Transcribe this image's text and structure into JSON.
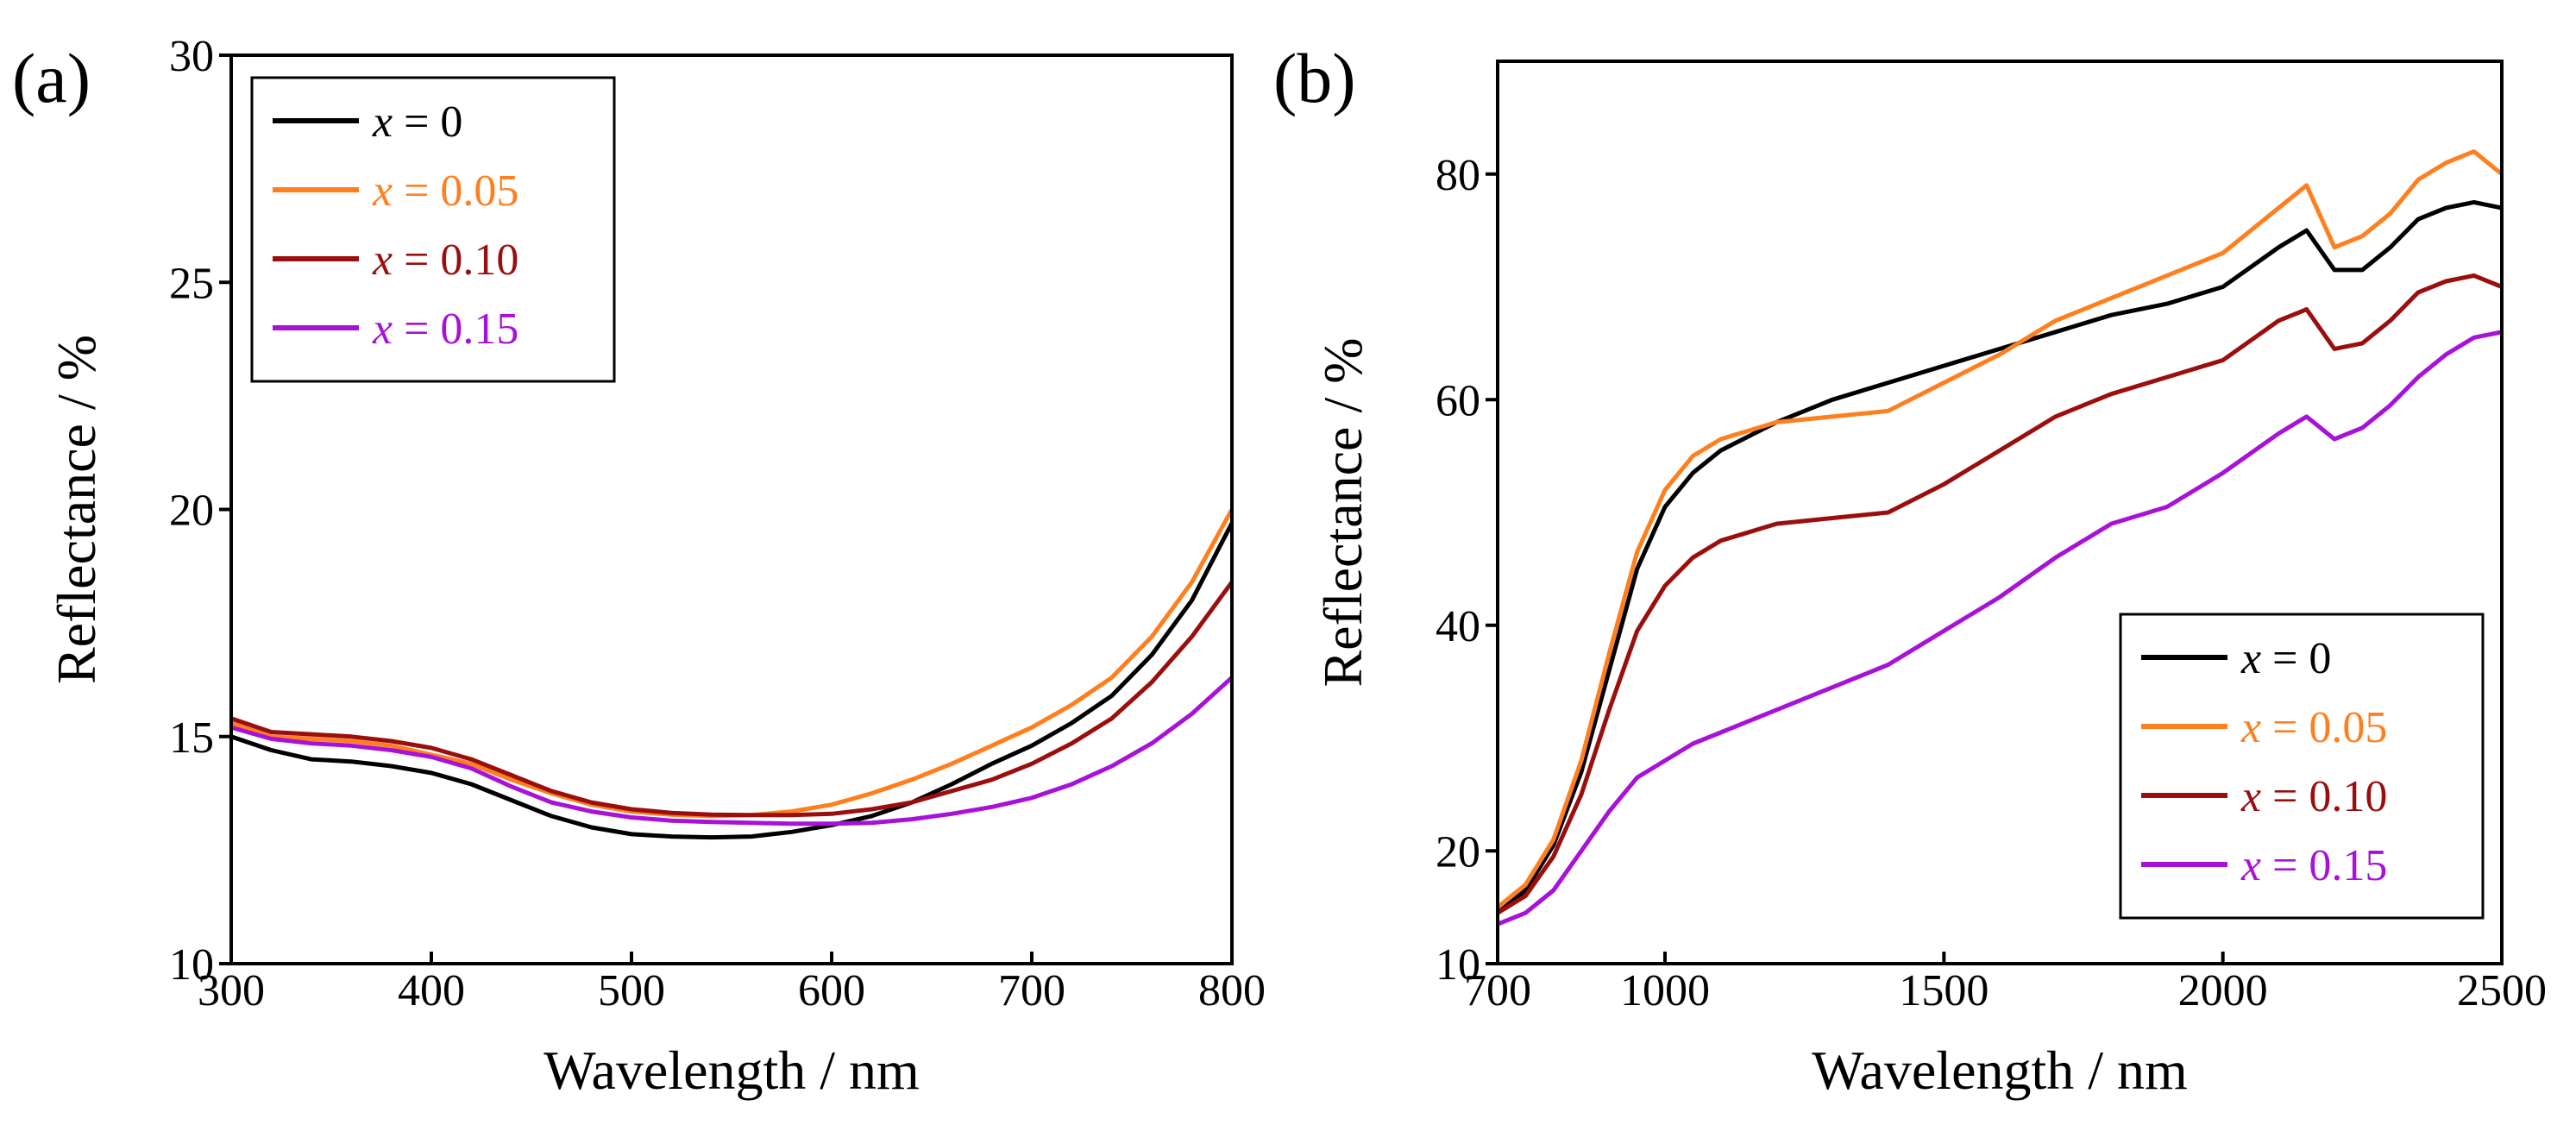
{
  "chart_data": [
    {
      "type": "line",
      "panel_label": "(a)",
      "xlabel": "Wavelength / nm",
      "ylabel": "Reflectance / %",
      "xlim": [
        300,
        800
      ],
      "ylim": [
        10,
        30
      ],
      "xticks": [
        300,
        400,
        500,
        600,
        700,
        800
      ],
      "yticks": [
        10,
        15,
        20,
        25,
        30
      ],
      "legend_position": "top-left",
      "series": [
        {
          "name": "x = 0",
          "var": "x",
          "value": " = 0",
          "color": "#000000",
          "x": [
            300,
            320,
            340,
            360,
            380,
            400,
            420,
            440,
            460,
            480,
            500,
            520,
            540,
            560,
            580,
            600,
            620,
            640,
            660,
            680,
            700,
            720,
            740,
            760,
            780,
            800
          ],
          "y": [
            15.0,
            14.7,
            14.5,
            14.45,
            14.35,
            14.2,
            13.95,
            13.6,
            13.25,
            13.0,
            12.85,
            12.8,
            12.78,
            12.8,
            12.9,
            13.05,
            13.25,
            13.55,
            13.95,
            14.4,
            14.8,
            15.3,
            15.9,
            16.8,
            18.0,
            19.7
          ]
        },
        {
          "name": "x = 0.05",
          "var": "x",
          "value": " = 0.05",
          "color": "#FF7F1E",
          "x": [
            300,
            320,
            340,
            360,
            380,
            400,
            420,
            440,
            460,
            480,
            500,
            520,
            540,
            560,
            580,
            600,
            620,
            640,
            660,
            680,
            700,
            720,
            740,
            760,
            780,
            800
          ],
          "y": [
            15.3,
            15.0,
            14.95,
            14.9,
            14.8,
            14.6,
            14.4,
            14.05,
            13.75,
            13.5,
            13.35,
            13.28,
            13.25,
            13.27,
            13.35,
            13.5,
            13.75,
            14.05,
            14.4,
            14.8,
            15.2,
            15.7,
            16.3,
            17.2,
            18.4,
            20.0
          ]
        },
        {
          "name": "x = 0.10",
          "var": "x",
          "value": " = 0.10",
          "color": "#9B0E0E",
          "x": [
            300,
            320,
            340,
            360,
            380,
            400,
            420,
            440,
            460,
            480,
            500,
            520,
            540,
            560,
            580,
            600,
            620,
            640,
            660,
            680,
            700,
            720,
            740,
            760,
            780,
            800
          ],
          "y": [
            15.4,
            15.1,
            15.05,
            15.0,
            14.9,
            14.75,
            14.5,
            14.15,
            13.8,
            13.55,
            13.4,
            13.32,
            13.28,
            13.27,
            13.27,
            13.3,
            13.4,
            13.55,
            13.8,
            14.05,
            14.4,
            14.85,
            15.4,
            16.2,
            17.2,
            18.4
          ]
        },
        {
          "name": "x = 0.15",
          "var": "x",
          "value": " = 0.15",
          "color": "#A812D8",
          "x": [
            300,
            320,
            340,
            360,
            380,
            400,
            420,
            440,
            460,
            480,
            500,
            520,
            540,
            560,
            580,
            600,
            620,
            640,
            660,
            680,
            700,
            720,
            740,
            760,
            780,
            800
          ],
          "y": [
            15.2,
            14.95,
            14.85,
            14.8,
            14.7,
            14.55,
            14.3,
            13.9,
            13.55,
            13.35,
            13.22,
            13.15,
            13.12,
            13.1,
            13.08,
            13.08,
            13.1,
            13.18,
            13.3,
            13.45,
            13.65,
            13.95,
            14.35,
            14.85,
            15.5,
            16.3
          ]
        }
      ]
    },
    {
      "type": "line",
      "panel_label": "(b)",
      "xlabel": "Wavelength / nm",
      "ylabel": "Reflectance / %",
      "xlim": [
        700,
        2500
      ],
      "ylim": [
        10,
        90
      ],
      "xticks": [
        700,
        1000,
        1500,
        2000,
        2500
      ],
      "yticks": [
        10,
        20,
        40,
        60,
        80
      ],
      "legend_position": "bottom-right",
      "series": [
        {
          "name": "x = 0",
          "var": "x",
          "value": " = 0",
          "color": "#000000",
          "x": [
            700,
            750,
            800,
            850,
            900,
            950,
            1000,
            1050,
            1100,
            1200,
            1300,
            1400,
            1500,
            1600,
            1700,
            1800,
            1900,
            2000,
            2100,
            2150,
            2200,
            2250,
            2300,
            2350,
            2400,
            2450,
            2500
          ],
          "y": [
            14.5,
            16.5,
            20.5,
            27,
            36,
            45,
            50.5,
            53.5,
            55.5,
            58,
            60,
            61.5,
            63,
            64.5,
            66,
            67.5,
            68.5,
            70,
            73.5,
            75,
            71.5,
            71.5,
            73.5,
            76,
            77,
            77.5,
            77
          ]
        },
        {
          "name": "x = 0.05",
          "var": "x",
          "value": " = 0.05",
          "color": "#FF7F1E",
          "x": [
            700,
            750,
            800,
            850,
            900,
            950,
            1000,
            1050,
            1100,
            1200,
            1300,
            1400,
            1500,
            1600,
            1700,
            1800,
            1900,
            2000,
            2100,
            2150,
            2200,
            2250,
            2300,
            2350,
            2400,
            2450,
            2500
          ],
          "y": [
            15,
            17,
            21,
            28,
            37.5,
            46.5,
            52,
            55,
            56.5,
            58,
            58.5,
            59,
            61.5,
            64,
            67,
            69,
            71,
            73,
            77,
            79,
            73.5,
            74.5,
            76.5,
            79.5,
            81,
            82,
            80
          ]
        },
        {
          "name": "x = 0.10",
          "var": "x",
          "value": " = 0.10",
          "color": "#9B0E0E",
          "x": [
            700,
            750,
            800,
            850,
            900,
            950,
            1000,
            1050,
            1100,
            1200,
            1300,
            1400,
            1500,
            1600,
            1700,
            1800,
            1900,
            2000,
            2100,
            2150,
            2200,
            2250,
            2300,
            2350,
            2400,
            2450,
            2500
          ],
          "y": [
            14.5,
            16,
            19.5,
            25,
            32.5,
            39.5,
            43.5,
            46,
            47.5,
            49,
            49.5,
            50,
            52.5,
            55.5,
            58.5,
            60.5,
            62,
            63.5,
            67,
            68,
            64.5,
            65,
            67,
            69.5,
            70.5,
            71,
            70
          ]
        },
        {
          "name": "x = 0.15",
          "var": "x",
          "value": " = 0.15",
          "color": "#A812D8",
          "x": [
            700,
            750,
            800,
            850,
            900,
            950,
            1000,
            1050,
            1100,
            1200,
            1300,
            1400,
            1500,
            1600,
            1700,
            1800,
            1900,
            2000,
            2100,
            2150,
            2200,
            2250,
            2300,
            2350,
            2400,
            2450,
            2500
          ],
          "y": [
            13.5,
            14.5,
            16.5,
            20,
            23.5,
            26.5,
            28,
            29.5,
            30.5,
            32.5,
            34.5,
            36.5,
            39.5,
            42.5,
            46,
            49,
            50.5,
            53.5,
            57,
            58.5,
            56.5,
            57.5,
            59.5,
            62,
            64,
            65.5,
            66
          ]
        }
      ]
    }
  ]
}
